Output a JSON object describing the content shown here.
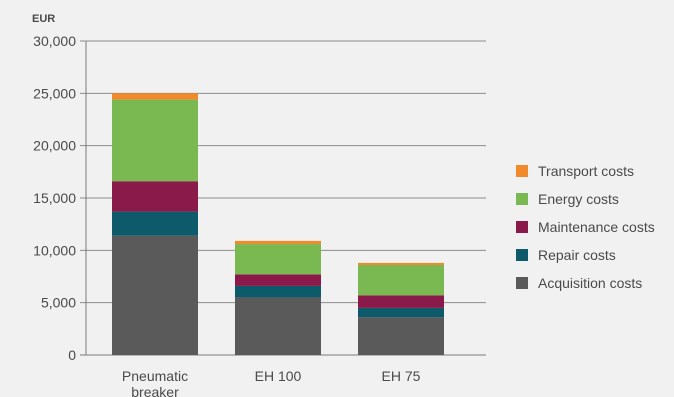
{
  "chart_data": {
    "type": "stacked_bar",
    "ylabel": "EUR",
    "ylim": [
      0,
      30000
    ],
    "yticks": [
      0,
      5000,
      10000,
      15000,
      20000,
      25000,
      30000
    ],
    "ytick_labels": [
      "0",
      "5,000",
      "10,000",
      "15,000",
      "20,000",
      "25,000",
      "30,000"
    ],
    "grid": true,
    "legend_position": "right",
    "categories": [
      "Pneumatic breaker",
      "EH 100",
      "EH 75"
    ],
    "series": [
      {
        "name": "Acquisition costs",
        "color": "#5a5a5a",
        "values": [
          11400,
          5500,
          3600
        ]
      },
      {
        "name": "Repair costs",
        "color": "#0d5a6b",
        "values": [
          2300,
          1100,
          900
        ]
      },
      {
        "name": "Maintenance costs",
        "color": "#8a1a4a",
        "values": [
          2900,
          1100,
          1200
        ]
      },
      {
        "name": "Energy costs",
        "color": "#7ab851",
        "values": [
          7800,
          2900,
          2900
        ]
      },
      {
        "name": "Transport costs",
        "color": "#f08a2b",
        "values": [
          600,
          300,
          200
        ]
      }
    ]
  }
}
